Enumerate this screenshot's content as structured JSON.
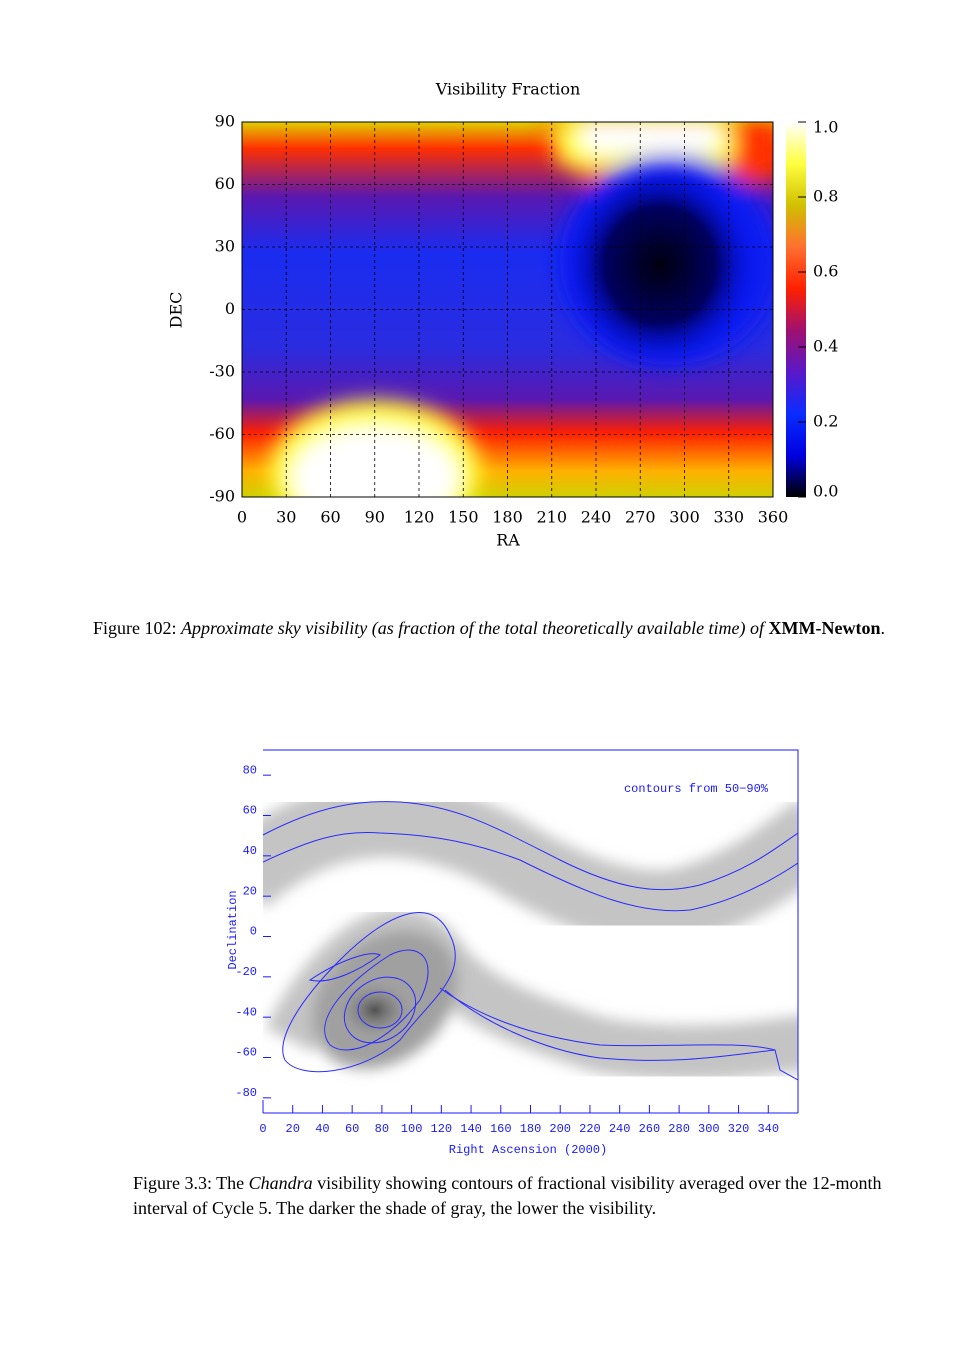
{
  "chart_data": [
    {
      "type": "heatmap",
      "title": "Visibility Fraction",
      "xlabel": "RA",
      "ylabel": "DEC",
      "xlim": [
        0,
        360
      ],
      "xticks": [
        0,
        30,
        60,
        90,
        120,
        150,
        180,
        210,
        240,
        270,
        300,
        330,
        360
      ],
      "ylim": [
        -90,
        90
      ],
      "yticks": [
        -90,
        -60,
        -30,
        0,
        30,
        60,
        90
      ],
      "grid": true,
      "clim": [
        0,
        1
      ],
      "cticks": [
        {
          "value": 0,
          "label": "0.0"
        },
        0.2,
        0.4,
        0.6,
        0.8,
        {
          "value": 1,
          "label": "1.0"
        }
      ],
      "colormap": [
        "#000000",
        "#0000e0",
        "#0a2cff",
        "#5a18c8",
        "#a01070",
        "#ff2000",
        "#ff7030",
        "#d0c000",
        "#ffff40",
        "#ffffff"
      ]
    },
    {
      "type": "contour",
      "annotation": "contours from 50−90%",
      "xlabel": "Right Ascension (2000)",
      "ylabel": "Declination",
      "xlim": [
        0,
        360
      ],
      "xticks": [
        0,
        20,
        40,
        60,
        80,
        100,
        120,
        140,
        160,
        180,
        200,
        220,
        240,
        260,
        280,
        300,
        320,
        340
      ],
      "ylim": [
        -90,
        90
      ],
      "yticks": [
        -80,
        -60,
        -40,
        -20,
        0,
        20,
        40,
        60,
        80
      ],
      "color": "#1a1aff"
    }
  ],
  "captions": [
    {
      "parts": [
        {
          "text": "Figure 102: ",
          "style": "normal"
        },
        {
          "text": "Approximate sky visibility (as fraction of the total theoretically available time) of ",
          "style": "italic"
        },
        {
          "text": "XMM-Newton",
          "style": "bold"
        },
        {
          "text": ".",
          "style": "normal"
        }
      ]
    },
    {
      "parts": [
        {
          "text": "Figure 3.3: The ",
          "style": "normal"
        },
        {
          "text": "Chandra",
          "style": "italic"
        },
        {
          "text": " visibility showing contours of fractional visibility averaged over the 12-month interval of Cycle 5. The darker the shade of gray, the lower the visibility.",
          "style": "normal"
        }
      ]
    }
  ]
}
